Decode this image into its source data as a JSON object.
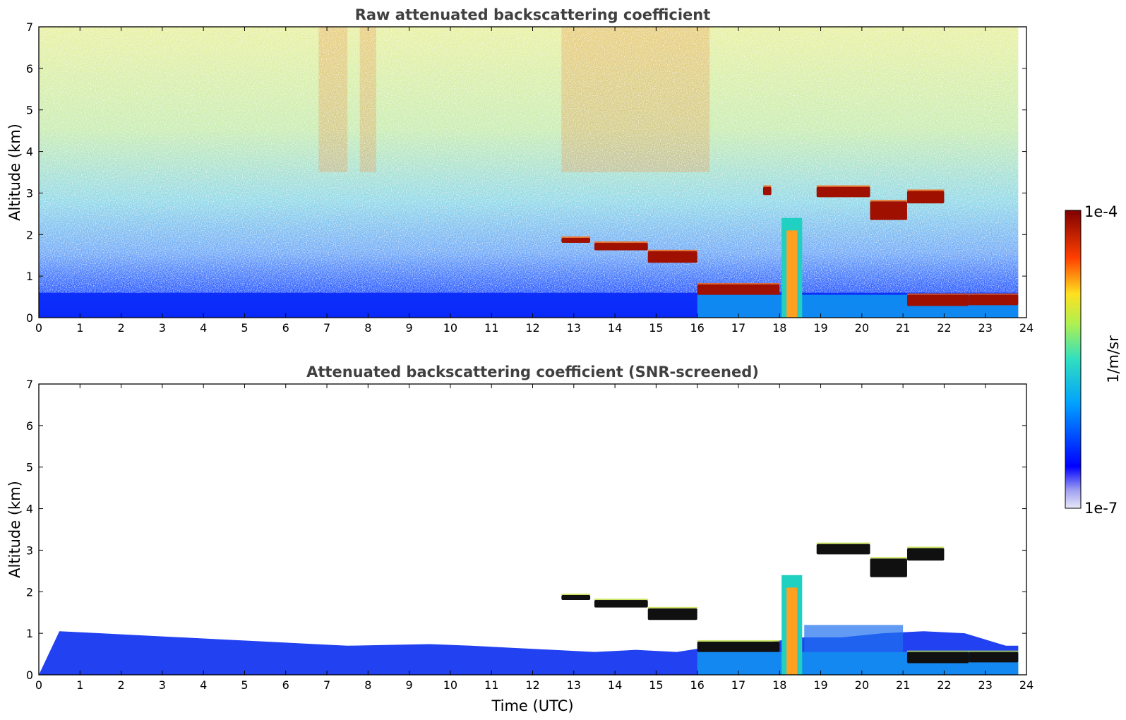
{
  "chart_data": [
    {
      "type": "heatmap",
      "title": "Raw attenuated backscattering coefficient",
      "xlabel": "",
      "ylabel": "Altitude (km)",
      "xlim": [
        0,
        24
      ],
      "ylim": [
        0,
        7
      ],
      "xticks": [
        "0",
        "1",
        "2",
        "3",
        "4",
        "5",
        "6",
        "7",
        "8",
        "9",
        "10",
        "11",
        "12",
        "13",
        "14",
        "15",
        "16",
        "17",
        "18",
        "19",
        "20",
        "21",
        "22",
        "23",
        "24"
      ],
      "yticks": [
        "0",
        "1",
        "2",
        "3",
        "4",
        "5",
        "6",
        "7"
      ],
      "features": [
        {
          "kind": "layer",
          "t0": 12.7,
          "t1": 13.4,
          "z0": 1.8,
          "z1": 1.92
        },
        {
          "kind": "layer",
          "t0": 13.5,
          "t1": 14.8,
          "z0": 1.62,
          "z1": 1.8
        },
        {
          "kind": "layer",
          "t0": 14.8,
          "t1": 16.0,
          "z0": 1.32,
          "z1": 1.6
        },
        {
          "kind": "layer",
          "t0": 16.0,
          "t1": 18.0,
          "z0": 0.55,
          "z1": 0.8
        },
        {
          "kind": "layer",
          "t0": 17.6,
          "t1": 17.8,
          "z0": 2.95,
          "z1": 3.15
        },
        {
          "kind": "layer",
          "t0": 18.9,
          "t1": 20.2,
          "z0": 2.9,
          "z1": 3.15
        },
        {
          "kind": "layer",
          "t0": 20.2,
          "t1": 21.1,
          "z0": 2.35,
          "z1": 2.8
        },
        {
          "kind": "layer",
          "t0": 21.1,
          "t1": 22.0,
          "z0": 2.75,
          "z1": 3.05
        },
        {
          "kind": "layer",
          "t0": 21.1,
          "t1": 22.6,
          "z0": 0.28,
          "z1": 0.55
        },
        {
          "kind": "layer",
          "t0": 22.6,
          "t1": 23.8,
          "z0": 0.3,
          "z1": 0.55
        },
        {
          "kind": "column",
          "t0": 18.05,
          "t1": 18.55,
          "z0": 0.0,
          "z1": 2.4
        }
      ]
    },
    {
      "type": "heatmap",
      "title": "Attenuated backscattering coefficient (SNR-screened)",
      "xlabel": "Time (UTC)",
      "ylabel": "Altitude (km)",
      "xlim": [
        0,
        24
      ],
      "ylim": [
        0,
        7
      ],
      "xticks": [
        "0",
        "1",
        "2",
        "3",
        "4",
        "5",
        "6",
        "7",
        "8",
        "9",
        "10",
        "11",
        "12",
        "13",
        "14",
        "15",
        "16",
        "17",
        "18",
        "19",
        "20",
        "21",
        "22",
        "23",
        "24"
      ],
      "yticks": [
        "0",
        "1",
        "2",
        "3",
        "4",
        "5",
        "6",
        "7"
      ],
      "features": [
        {
          "kind": "layer",
          "t0": 12.7,
          "t1": 13.4,
          "z0": 1.8,
          "z1": 1.92
        },
        {
          "kind": "layer",
          "t0": 13.5,
          "t1": 14.8,
          "z0": 1.62,
          "z1": 1.8
        },
        {
          "kind": "layer",
          "t0": 14.8,
          "t1": 16.0,
          "z0": 1.32,
          "z1": 1.6
        },
        {
          "kind": "layer",
          "t0": 16.0,
          "t1": 18.0,
          "z0": 0.55,
          "z1": 0.8
        },
        {
          "kind": "layer",
          "t0": 18.9,
          "t1": 20.2,
          "z0": 2.9,
          "z1": 3.15
        },
        {
          "kind": "layer",
          "t0": 20.2,
          "t1": 21.1,
          "z0": 2.35,
          "z1": 2.8
        },
        {
          "kind": "layer",
          "t0": 21.1,
          "t1": 22.0,
          "z0": 2.75,
          "z1": 3.05
        },
        {
          "kind": "layer",
          "t0": 21.1,
          "t1": 22.6,
          "z0": 0.28,
          "z1": 0.55
        },
        {
          "kind": "layer",
          "t0": 22.6,
          "t1": 23.8,
          "z0": 0.3,
          "z1": 0.55
        },
        {
          "kind": "column",
          "t0": 18.05,
          "t1": 18.55,
          "z0": 0.0,
          "z1": 2.4
        }
      ]
    }
  ],
  "colorbar": {
    "label": "1/m/sr",
    "max_label": "1e-4",
    "min_label": "1e-7",
    "scale": "log",
    "range": [
      1e-07,
      0.0001
    ],
    "colors": [
      "#e8e8f8",
      "#0000ff",
      "#00c8ff",
      "#ffff40",
      "#ff2000",
      "#800000"
    ]
  }
}
